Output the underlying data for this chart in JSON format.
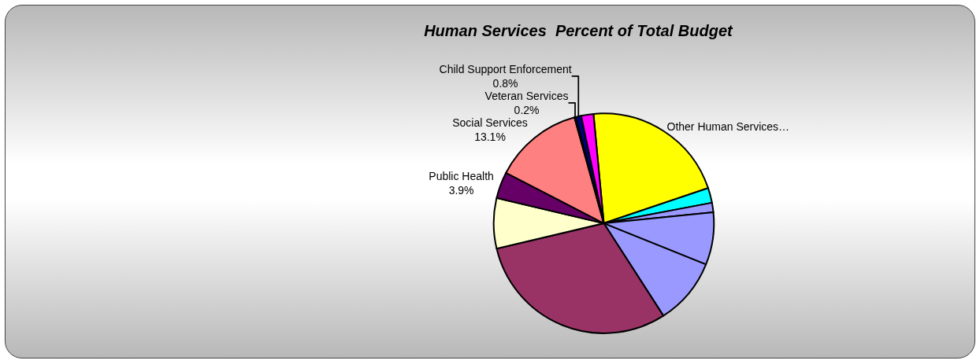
{
  "chart_data": {
    "type": "pie",
    "title": "Human Services  Percent of Total Budget",
    "categories": [
      "Other Human Services…",
      null,
      null,
      null,
      null,
      null,
      null,
      "Public Health",
      "Social Services",
      "Veteran Services",
      "Child Support Enforcement",
      null
    ],
    "values": [
      21.3,
      2.2,
      1.4,
      7.7,
      9.8,
      30.4,
      7.4,
      3.9,
      13.1,
      0.2,
      0.8,
      1.8
    ],
    "value_labels": [
      null,
      null,
      null,
      null,
      null,
      null,
      null,
      "3.9%",
      "13.1%",
      "0.2%",
      "0.8%",
      null
    ],
    "colors": [
      "#ffff00",
      "#00ffff",
      "#9999ff",
      "#9999ff",
      "#9999ff",
      "#993366",
      "#ffffcc",
      "#660066",
      "#ff8080",
      "#ccccff",
      "#000080",
      "#ff00ff"
    ],
    "legend": false
  }
}
